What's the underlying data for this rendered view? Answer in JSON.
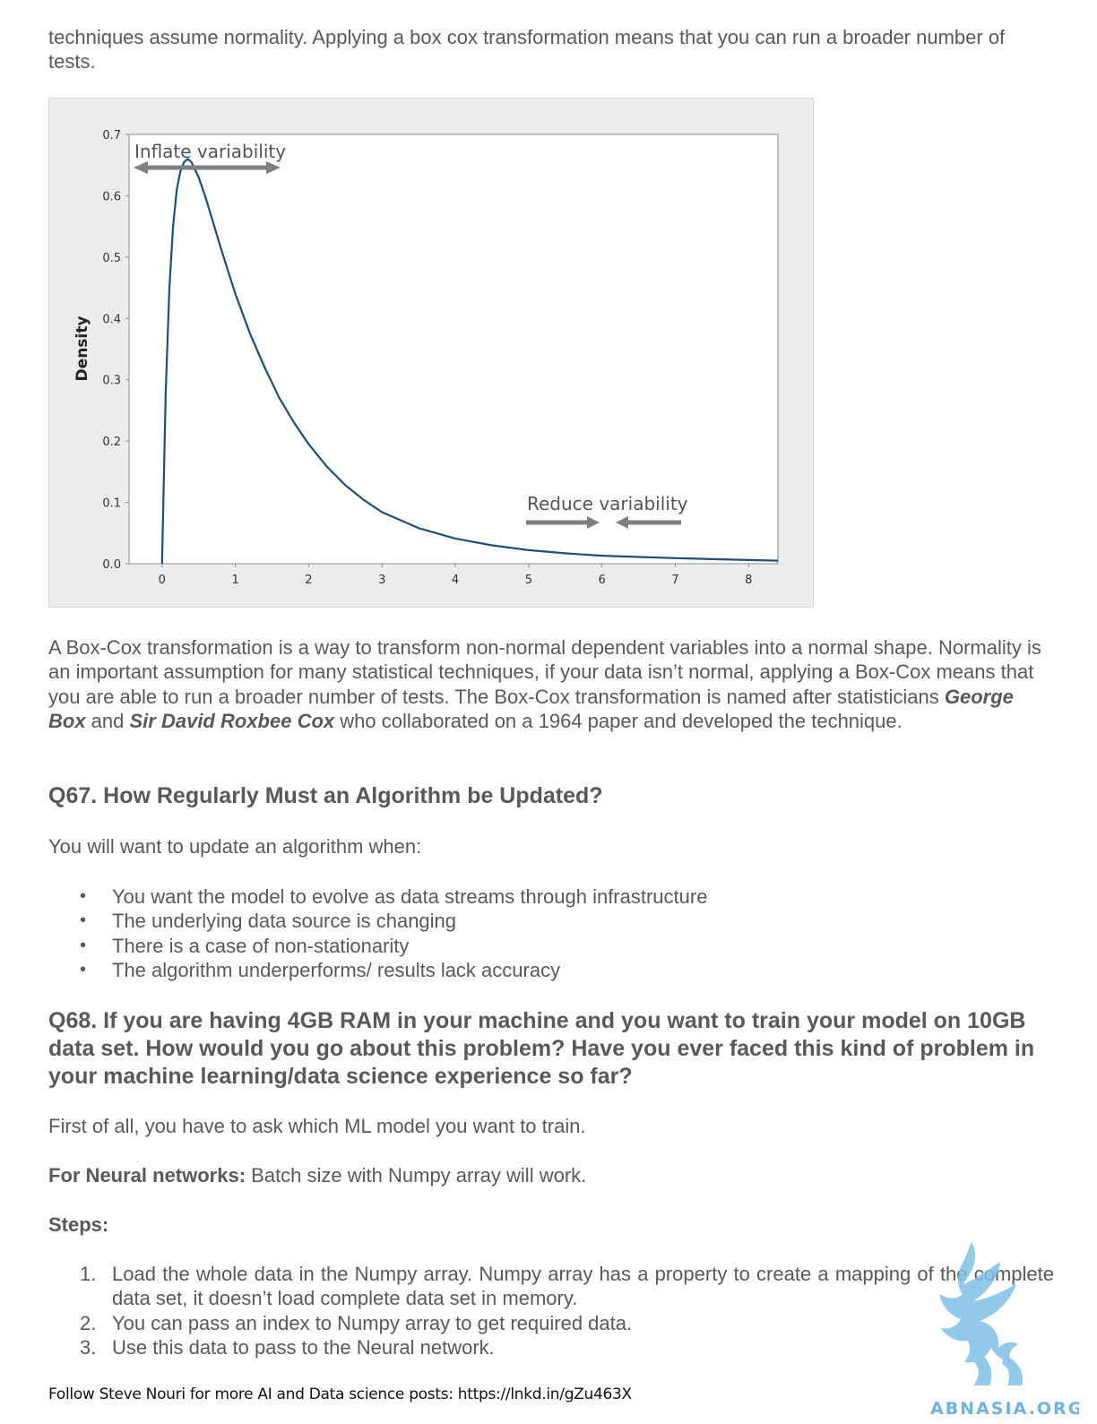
{
  "lead_text": "techniques assume normality. Applying a box cox transformation means that you can run a broader number of tests.",
  "chart_data": {
    "type": "line",
    "ylabel": "Density",
    "xlabel": "",
    "x_ticks": [
      "0",
      "1",
      "2",
      "3",
      "4",
      "5",
      "6",
      "7",
      "8"
    ],
    "y_ticks": [
      "0.0",
      "0.1",
      "0.2",
      "0.3",
      "0.4",
      "0.5",
      "0.6",
      "0.7"
    ],
    "xlim": [
      -0.45,
      8.4
    ],
    "ylim": [
      0,
      0.7
    ],
    "line_color": "#1f4e79",
    "series": [
      {
        "x": [
          0,
          0.05,
          0.1,
          0.15,
          0.2,
          0.25,
          0.3,
          0.35,
          0.4,
          0.5,
          0.6,
          0.7,
          0.8,
          1.0,
          1.2,
          1.4,
          1.6,
          1.8,
          2.0,
          2.25,
          2.5,
          2.75,
          3.0,
          3.5,
          4.0,
          4.5,
          5.0,
          5.5,
          6.0,
          6.5,
          7.0,
          7.5,
          8.0,
          8.4
        ],
        "y": [
          0,
          0.28,
          0.45,
          0.55,
          0.61,
          0.64,
          0.655,
          0.66,
          0.655,
          0.63,
          0.595,
          0.555,
          0.515,
          0.44,
          0.375,
          0.32,
          0.27,
          0.23,
          0.195,
          0.158,
          0.128,
          0.104,
          0.084,
          0.058,
          0.041,
          0.03,
          0.022,
          0.017,
          0.013,
          0.011,
          0.009,
          0.0075,
          0.006,
          0.005
        ]
      }
    ],
    "annotations": [
      {
        "text": "Inflate variability",
        "color": "#7f7f7f"
      },
      {
        "text": "Reduce variability",
        "color": "#7f7f7f"
      }
    ],
    "grid": false
  },
  "para2": {
    "part1": "A Box-Cox transformation is a way to transform non-normal dependent variables into a normal shape. Normality is an important assumption for many statistical techniques, if your data isn’t normal, applying a Box-Cox means that you are able to run a broader number of tests. The Box-Cox transformation is named after statisticians ",
    "name1": "George Box",
    "and": " and ",
    "name2": "Sir David Roxbee Cox",
    "part2": " who collaborated on a 1964 paper and developed the technique."
  },
  "q67": {
    "heading": "Q67. How Regularly Must an Algorithm be Updated?",
    "intro": "You will want to update an algorithm when:",
    "bullets": [
      "You want the model to evolve as data streams through infrastructure",
      "The underlying data source is changing",
      "There is a case of non-stationarity",
      "The algorithm underperforms/ results lack accuracy"
    ],
    "bullet_glyph": "•"
  },
  "q68": {
    "heading": "Q68. If you are having 4GB RAM in your machine and you want to train your model on 10GB data set. How would you go about this problem? Have you ever faced this kind of problem in your machine learning/data science experience so far?",
    "first": "First of all, you have to ask which ML model you want to train.",
    "nn_label": "For Neural networks:",
    "nn_text": " Batch size with Numpy array will work.",
    "steps_label": "Steps:",
    "steps": [
      {
        "num": "1.",
        "text": "Load the whole data in the Numpy array. Numpy array has a property to create a mapping of the complete data set, it doesn’t load complete data set in memory."
      },
      {
        "num": "2.",
        "text": "You can pass an index to Numpy array to get required data."
      },
      {
        "num": "3.",
        "text": "Use this data to pass to the Neural network."
      }
    ]
  },
  "footer": "Follow Steve Nouri for more AI and Data science posts: https://lnkd.in/gZu463X",
  "watermark": {
    "text": "ABNASIA.ORG",
    "color": "#6fb3dd",
    "icon": "griffin-logo-icon"
  }
}
